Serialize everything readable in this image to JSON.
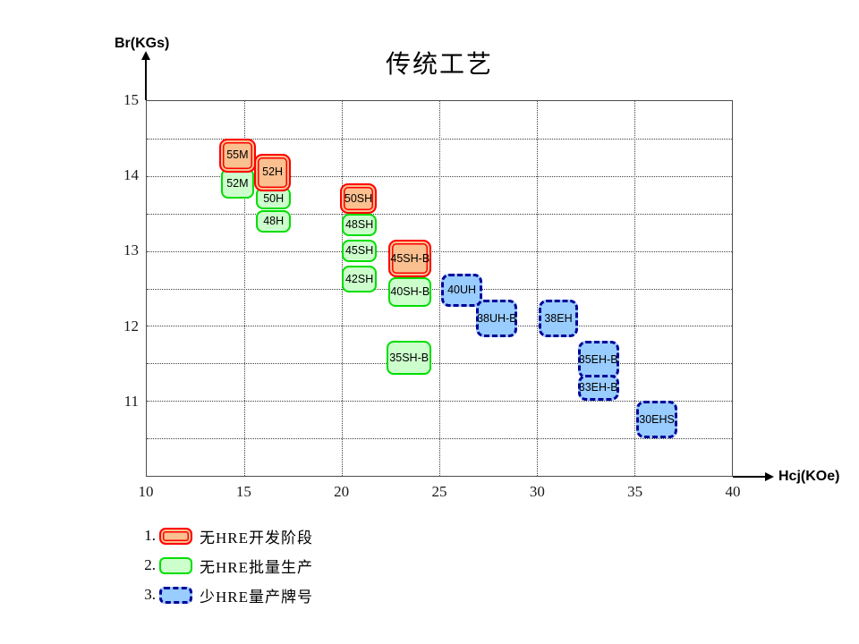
{
  "title": "传统工艺",
  "axes": {
    "y": {
      "label": "Br(KGs)",
      "min": 10,
      "max": 15,
      "ticks": [
        15,
        14,
        13,
        12,
        11
      ],
      "grid_step": 0.5
    },
    "x": {
      "label": "Hcj(KOe)",
      "min": 10,
      "max": 40,
      "ticks": [
        10,
        15,
        20,
        25,
        30,
        35,
        40
      ],
      "grid_step": 5
    }
  },
  "chart_data": {
    "type": "scatter",
    "title": "传统工艺",
    "xlabel": "Hcj(KOe)",
    "ylabel": "Br(KGs)",
    "xlim": [
      10,
      40
    ],
    "ylim": [
      10,
      15
    ],
    "grid": true,
    "note": "each point is a magnet grade occupying a rectangular region [hcj_min,hcj_max] x [br_min,br_max]",
    "series": [
      {
        "name": "无HRE批量生产",
        "style": "mass",
        "points": [
          {
            "label": "52M",
            "hcj": [
              13.8,
              15.5
            ],
            "br": [
              13.7,
              14.1
            ]
          },
          {
            "label": "50H",
            "hcj": [
              15.6,
              17.4
            ],
            "br": [
              13.55,
              13.85
            ]
          },
          {
            "label": "48H",
            "hcj": [
              15.6,
              17.4
            ],
            "br": [
              13.25,
              13.55
            ]
          },
          {
            "label": "48SH",
            "hcj": [
              20.0,
              21.8
            ],
            "br": [
              13.2,
              13.5
            ]
          },
          {
            "label": "45SH",
            "hcj": [
              20.0,
              21.8
            ],
            "br": [
              12.85,
              13.15
            ]
          },
          {
            "label": "42SH",
            "hcj": [
              20.0,
              21.8
            ],
            "br": [
              12.45,
              12.8
            ]
          },
          {
            "label": "40SH-B",
            "hcj": [
              22.4,
              24.6
            ],
            "br": [
              12.25,
              12.65
            ]
          },
          {
            "label": "35SH-B",
            "hcj": [
              22.3,
              24.6
            ],
            "br": [
              11.35,
              11.8
            ]
          }
        ]
      },
      {
        "name": "无HRE开发阶段",
        "style": "dev",
        "points": [
          {
            "label": "55M",
            "hcj": [
              13.7,
              15.6
            ],
            "br": [
              14.05,
              14.5
            ]
          },
          {
            "label": "52H",
            "hcj": [
              15.5,
              17.4
            ],
            "br": [
              13.8,
              14.3
            ]
          },
          {
            "label": "50SH",
            "hcj": [
              19.9,
              21.8
            ],
            "br": [
              13.5,
              13.9
            ]
          },
          {
            "label": "45SH-B",
            "hcj": [
              22.4,
              24.6
            ],
            "br": [
              12.65,
              13.15
            ]
          }
        ]
      },
      {
        "name": "少HRE量产牌号",
        "style": "lowhre",
        "points": [
          {
            "label": "38UH-B",
            "hcj": [
              26.9,
              29.0
            ],
            "br": [
              11.85,
              12.35
            ]
          },
          {
            "label": "40UH",
            "hcj": [
              25.1,
              27.2
            ],
            "br": [
              12.25,
              12.7
            ]
          },
          {
            "label": "38EH",
            "hcj": [
              30.1,
              32.1
            ],
            "br": [
              11.85,
              12.35
            ]
          },
          {
            "label": "35EH-B",
            "hcj": [
              32.1,
              34.2
            ],
            "br": [
              11.3,
              11.8
            ]
          },
          {
            "label": "33EH-B",
            "hcj": [
              32.1,
              34.2
            ],
            "br": [
              11.0,
              11.35
            ]
          },
          {
            "label": "30EHS",
            "hcj": [
              35.1,
              37.2
            ],
            "br": [
              10.5,
              11.0
            ]
          }
        ]
      }
    ]
  },
  "legend": {
    "items": [
      {
        "number": "1.",
        "label": "无HRE开发阶段",
        "style": "dev"
      },
      {
        "number": "2.",
        "label": "无HRE批量生产",
        "style": "mass"
      },
      {
        "number": "3.",
        "label": "少HRE量产牌号",
        "style": "lowhre"
      }
    ]
  },
  "colors": {
    "dev_fill": "#FAC090",
    "dev_border": "#FF0000",
    "mass_fill": "#CCFFCC",
    "mass_border": "#00DD00",
    "lowhre_fill": "#99CCFF",
    "lowhre_border": "#000099",
    "grid_line": "#404040",
    "plot_border": "#4d4d4d",
    "text": "#000000"
  }
}
